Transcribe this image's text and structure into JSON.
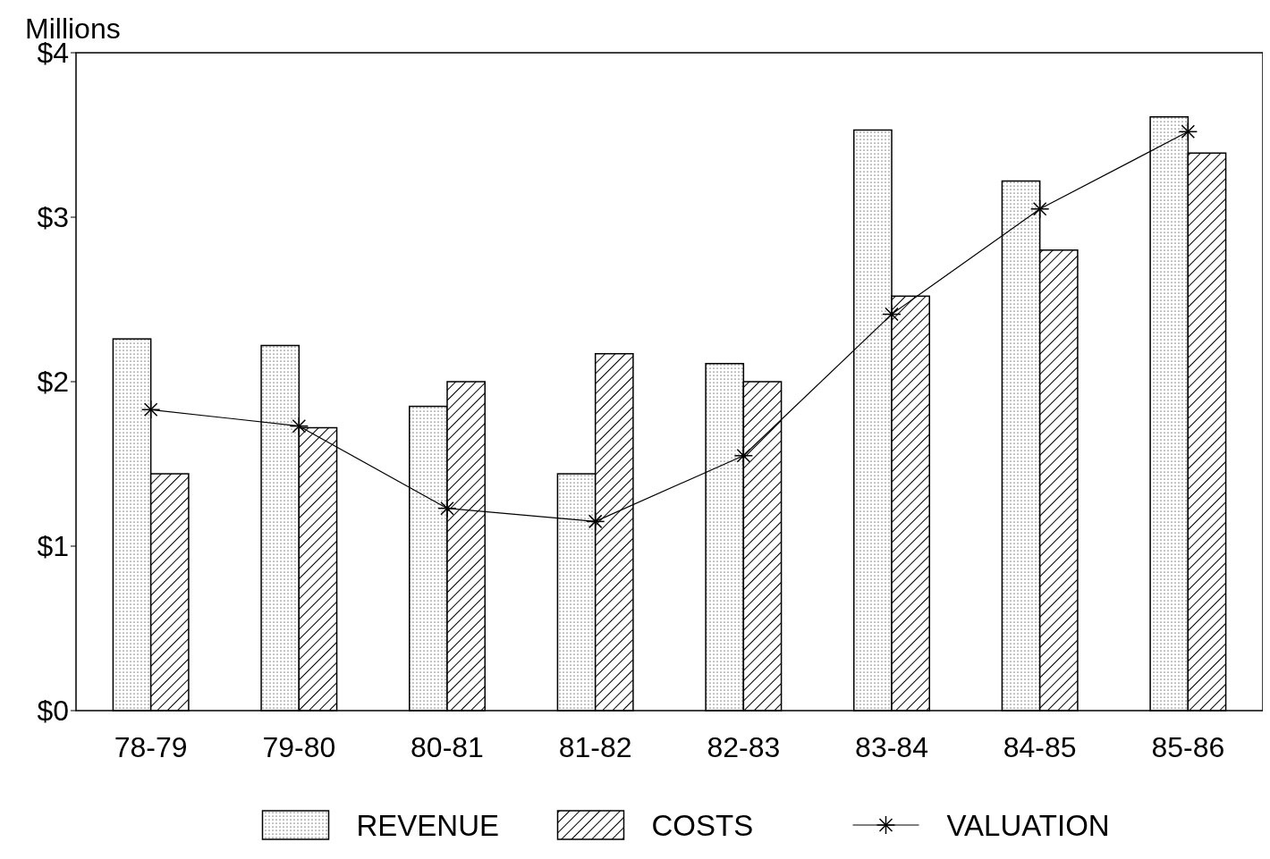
{
  "chart_data": {
    "type": "bar",
    "ylabel": "Millions",
    "categories": [
      "78-79",
      "79-80",
      "80-81",
      "81-82",
      "82-83",
      "83-84",
      "84-85",
      "85-86"
    ],
    "series": [
      {
        "name": "REVENUE",
        "color": "#000000",
        "values": [
          2.26,
          2.22,
          1.85,
          1.44,
          2.11,
          3.53,
          3.22,
          3.61
        ]
      },
      {
        "name": "COSTS",
        "color": "#000000",
        "values": [
          1.44,
          1.72,
          2.0,
          2.17,
          2.0,
          2.52,
          2.8,
          3.39
        ]
      },
      {
        "name": "VALUATION",
        "type": "line",
        "color": "#000000",
        "marker": "cross",
        "values": [
          1.83,
          1.73,
          1.23,
          1.15,
          1.55,
          2.41,
          3.05,
          3.52
        ]
      }
    ],
    "ylim": [
      0,
      4
    ],
    "yticks": [
      {
        "value": 0,
        "label": "$0"
      },
      {
        "value": 1,
        "label": "$1"
      },
      {
        "value": 2,
        "label": "$2"
      },
      {
        "value": 3,
        "label": "$3"
      },
      {
        "value": 4,
        "label": "$4"
      }
    ],
    "legend": "bottom",
    "grid": false
  }
}
